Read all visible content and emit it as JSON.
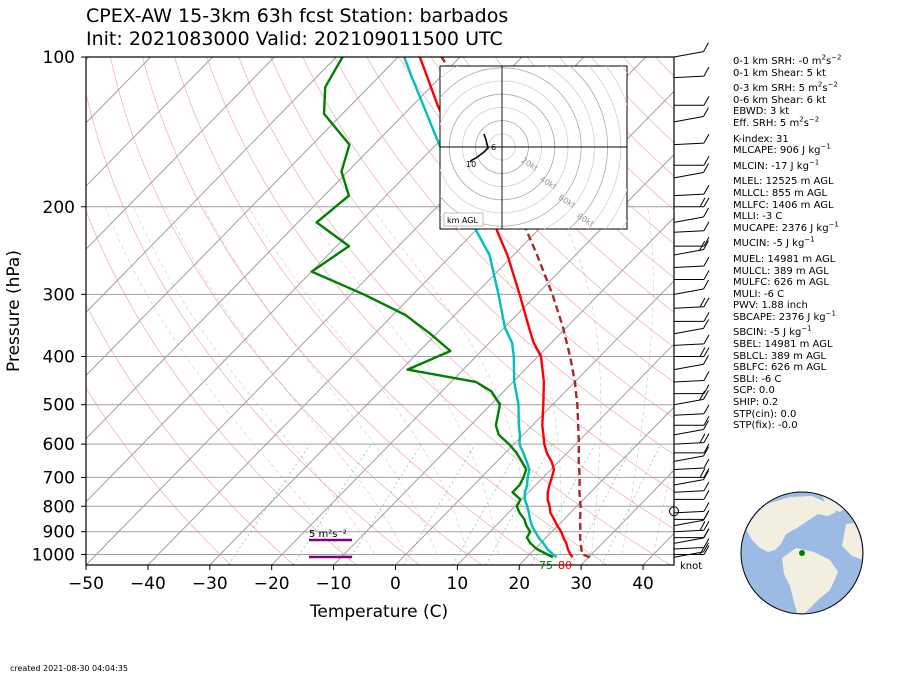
{
  "title_line1": "CPEX-AW 15-3km  63h fcst  Station: barbados",
  "title_line2": "Init: 2021083000  Valid: 202109011500 UTC",
  "created": "created 2021-08-30 04:04:35",
  "stats": [
    "0-1 km SRH: -0 m^2s^-2",
    "0-1 km Shear: 5 kt",
    "0-3 km SRH: 5 m^2s^-2",
    "0-6 km Shear: 6 kt",
    "EBWD: 3 kt",
    "Eff. SRH: 5 m^2s^-2",
    "K-index: 31",
    "MLCAPE: 906 J kg^-1",
    "MLCIN: -17 J kg^-1",
    "MLEL: 12525 m AGL",
    "MLLCL: 855 m AGL",
    "MLLFC: 1406 m AGL",
    "MLLI: -3 C",
    "MUCAPE: 2376 J kg^-1",
    "MUCIN: -5 J kg^-1",
    "MUEL: 14981 m AGL",
    "MULCL: 389 m AGL",
    "MULFC: 626 m AGL",
    "MULI: -6 C",
    "PWV: 1.88 inch",
    "SBCAPE: 2376 J kg^-1",
    "SBCIN: -5 J kg^-1",
    "SBEL: 14981 m AGL",
    "SBLCL: 389 m AGL",
    "SBLFC: 626 m AGL",
    "SBLI: -6 C",
    "SCP: 0.0",
    "SHIP: 0.2",
    "STP(cin): 0.0",
    "STP(fix): -0.0"
  ],
  "chart_data": {
    "type": "line",
    "title": "CPEX-AW 15-3km  63h fcst  Station: barbados",
    "xlabel": "Temperature (C)",
    "ylabel": "Pressure (hPa)",
    "xlim": [
      -50,
      45
    ],
    "ylim": [
      1050,
      100
    ],
    "yscale": "log",
    "skew": true,
    "x_ticks": [
      -50,
      -40,
      -30,
      -20,
      -10,
      0,
      10,
      20,
      30,
      40
    ],
    "x_tick_labels": [
      "−50",
      "−40",
      "−30",
      "−20",
      "−10",
      "0",
      "10",
      "20",
      "30",
      "40"
    ],
    "y_ticks": [
      100,
      200,
      300,
      400,
      500,
      600,
      700,
      800,
      900,
      1000
    ],
    "y_tick_labels": [
      "100",
      "200",
      "300",
      "400",
      "500",
      "600",
      "700",
      "800",
      "900",
      "1000"
    ],
    "grid": true,
    "series": [
      {
        "color": "#ff0000",
        "points": [
          [
            1013,
            27.4
          ],
          [
            1000,
            26.6
          ],
          [
            975,
            25.3
          ],
          [
            950,
            24.2
          ],
          [
            925,
            22.8
          ],
          [
            900,
            21.5
          ],
          [
            875,
            19.9
          ],
          [
            850,
            18.4
          ],
          [
            825,
            16.8
          ],
          [
            800,
            15.6
          ],
          [
            775,
            14.2
          ],
          [
            750,
            13.1
          ],
          [
            725,
            12.2
          ],
          [
            700,
            11.4
          ],
          [
            675,
            10.5
          ],
          [
            650,
            8.8
          ],
          [
            625,
            6.7
          ],
          [
            600,
            4.9
          ],
          [
            575,
            3.3
          ],
          [
            550,
            1.6
          ],
          [
            500,
            -1.5
          ],
          [
            450,
            -5.0
          ],
          [
            400,
            -9.5
          ],
          [
            375,
            -12.9
          ],
          [
            350,
            -16.0
          ],
          [
            300,
            -22.8
          ],
          [
            250,
            -31.0
          ],
          [
            225,
            -36.2
          ],
          [
            200,
            -41.6
          ],
          [
            175,
            -48.5
          ],
          [
            150,
            -56.7
          ],
          [
            125,
            -66.0
          ],
          [
            110,
            -72.0
          ],
          [
            100,
            -76.5
          ]
        ]
      },
      {
        "color": "#00bfbf",
        "points": [
          [
            1013,
            24.8
          ],
          [
            1000,
            23.8
          ],
          [
            975,
            22.0
          ],
          [
            950,
            20.5
          ],
          [
            925,
            18.8
          ],
          [
            900,
            17.3
          ],
          [
            875,
            15.8
          ],
          [
            850,
            14.5
          ],
          [
            825,
            13.3
          ],
          [
            800,
            12.0
          ],
          [
            775,
            10.5
          ],
          [
            750,
            9.4
          ],
          [
            725,
            8.6
          ],
          [
            700,
            7.5
          ],
          [
            675,
            6.5
          ],
          [
            650,
            4.8
          ],
          [
            625,
            2.9
          ],
          [
            600,
            0.9
          ],
          [
            575,
            -0.5
          ],
          [
            550,
            -2.2
          ],
          [
            500,
            -5.5
          ],
          [
            450,
            -9.8
          ],
          [
            400,
            -13.9
          ],
          [
            375,
            -16.4
          ],
          [
            350,
            -19.9
          ],
          [
            300,
            -26.2
          ],
          [
            250,
            -33.9
          ],
          [
            225,
            -39.5
          ],
          [
            200,
            -45.2
          ],
          [
            175,
            -51.5
          ],
          [
            150,
            -59.5
          ],
          [
            125,
            -68.3
          ],
          [
            110,
            -74.5
          ],
          [
            100,
            -79.0
          ]
        ]
      },
      {
        "color": "#008000",
        "points": [
          [
            1013,
            24.2
          ],
          [
            1000,
            22.9
          ],
          [
            975,
            20.3
          ],
          [
            950,
            18.4
          ],
          [
            925,
            16.9
          ],
          [
            900,
            16.5
          ],
          [
            875,
            14.9
          ],
          [
            850,
            13.6
          ],
          [
            825,
            11.8
          ],
          [
            800,
            10.3
          ],
          [
            775,
            9.8
          ],
          [
            750,
            7.4
          ],
          [
            725,
            7.4
          ],
          [
            700,
            6.8
          ],
          [
            675,
            6.0
          ],
          [
            650,
            4.0
          ],
          [
            625,
            1.8
          ],
          [
            600,
            -0.8
          ],
          [
            575,
            -3.9
          ],
          [
            550,
            -5.9
          ],
          [
            500,
            -8.5
          ],
          [
            470,
            -12.0
          ],
          [
            450,
            -16.0
          ],
          [
            425,
            -29.0
          ],
          [
            390,
            -25.0
          ],
          [
            360,
            -31.0
          ],
          [
            330,
            -38.0
          ],
          [
            300,
            -48.0
          ],
          [
            270,
            -60.0
          ],
          [
            240,
            -58.0
          ],
          [
            215,
            -67.0
          ],
          [
            190,
            -66.0
          ],
          [
            170,
            -71.0
          ],
          [
            150,
            -74.0
          ],
          [
            130,
            -83.0
          ],
          [
            115,
            -87.0
          ],
          [
            100,
            -89.0
          ]
        ]
      },
      {
        "color": "#a52a2a",
        "dashed": true,
        "points": [
          [
            1013,
            30.2
          ],
          [
            1000,
            28.5
          ],
          [
            975,
            27.5
          ],
          [
            950,
            26.5
          ],
          [
            925,
            25.5
          ],
          [
            900,
            24.6
          ],
          [
            850,
            22.6
          ],
          [
            800,
            20.6
          ],
          [
            750,
            18.2
          ],
          [
            700,
            15.9
          ],
          [
            650,
            13.2
          ],
          [
            600,
            10.5
          ],
          [
            550,
            7.4
          ],
          [
            500,
            4.0
          ],
          [
            450,
            0.0
          ],
          [
            400,
            -4.8
          ],
          [
            350,
            -10.5
          ],
          [
            300,
            -17.5
          ],
          [
            250,
            -26.2
          ],
          [
            200,
            -37.2
          ],
          [
            150,
            -51.5
          ],
          [
            125,
            -60.8
          ],
          [
            110,
            -67.5
          ],
          [
            100,
            -73.0
          ]
        ]
      }
    ],
    "annotations": [
      "75",
      "80",
      "5 m²s⁻²",
      "knot"
    ],
    "hodograph": {
      "rings_kt": [
        20,
        40,
        60,
        80
      ],
      "ring_labels": [
        "20kt",
        "40kt",
        "60kt",
        "80kt"
      ],
      "height_labels": [
        "6",
        "10"
      ],
      "legend": "km AGL"
    },
    "wind_barbs": {
      "units": "knot"
    }
  }
}
